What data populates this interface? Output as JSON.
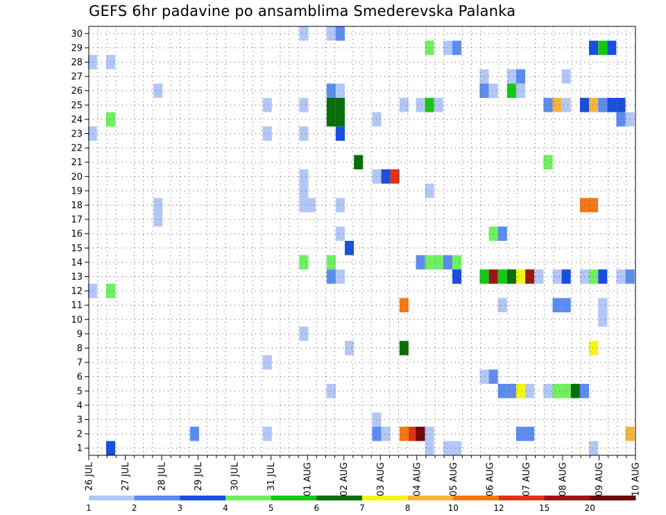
{
  "chart_data": {
    "type": "heatmap",
    "title": "GEFS 6hr padavine po ansamblima Smederevska Palanka",
    "x_tick_labels": [
      "26 JUL",
      "27 JUL",
      "28 JUL",
      "29 JUL",
      "30 JUL",
      "31 JUL",
      "01 AUG",
      "02 AUG",
      "03 AUG",
      "04 AUG",
      "05 AUG",
      "06 AUG",
      "07 AUG",
      "08 AUG",
      "09 AUG",
      "10 AUG"
    ],
    "y_tick_labels": [
      "1",
      "2",
      "3",
      "4",
      "5",
      "6",
      "7",
      "8",
      "9",
      "10",
      "11",
      "12",
      "13",
      "14",
      "15",
      "16",
      "17",
      "18",
      "19",
      "20",
      "21",
      "22",
      "23",
      "24",
      "25",
      "26",
      "27",
      "28",
      "29",
      "30"
    ],
    "xlim": [
      0,
      15
    ],
    "ylim": [
      0.5,
      30.5
    ],
    "grid": true,
    "legend_position": "bottom",
    "color_scale": {
      "colors": [
        "#b3c7f7",
        "#5d8cf0",
        "#1a4fdc",
        "#6ef060",
        "#14c814",
        "#0a6e0a",
        "#f5f514",
        "#f5b43c",
        "#f57814",
        "#e03214",
        "#a01414",
        "#6e0a0a"
      ],
      "labels": [
        "1",
        "2",
        "3",
        "4",
        "5",
        "6",
        "7",
        "8",
        "10",
        "12",
        "15",
        "20"
      ]
    },
    "cells": [
      {
        "d": 0.1,
        "m": 28,
        "v": 1
      },
      {
        "d": 0.1,
        "m": 23,
        "v": 1
      },
      {
        "d": 0.1,
        "m": 12,
        "v": 1
      },
      {
        "d": 0.6,
        "m": 28,
        "v": 1
      },
      {
        "d": 0.6,
        "m": 24,
        "v": 4
      },
      {
        "d": 0.6,
        "m": 12,
        "v": 4
      },
      {
        "d": 0.6,
        "m": 1,
        "v": 3
      },
      {
        "d": 1.9,
        "m": 26,
        "v": 1
      },
      {
        "d": 1.9,
        "m": 18,
        "v": 1
      },
      {
        "d": 1.9,
        "m": 17,
        "v": 1
      },
      {
        "d": 2.9,
        "m": 2,
        "v": 2
      },
      {
        "d": 4.9,
        "m": 25,
        "v": 1
      },
      {
        "d": 4.9,
        "m": 23,
        "v": 1
      },
      {
        "d": 4.9,
        "m": 7,
        "v": 1
      },
      {
        "d": 4.9,
        "m": 2,
        "v": 1
      },
      {
        "d": 5.9,
        "m": 30,
        "v": 1
      },
      {
        "d": 5.9,
        "m": 25,
        "v": 1
      },
      {
        "d": 5.9,
        "m": 23,
        "v": 1
      },
      {
        "d": 5.9,
        "m": 20,
        "v": 1
      },
      {
        "d": 5.9,
        "m": 19,
        "v": 1
      },
      {
        "d": 5.9,
        "m": 18,
        "v": 1
      },
      {
        "d": 5.9,
        "m": 14,
        "v": 4
      },
      {
        "d": 5.9,
        "m": 9,
        "v": 1
      },
      {
        "d": 6.1,
        "m": 18,
        "v": 1
      },
      {
        "d": 6.65,
        "m": 30,
        "v": 1
      },
      {
        "d": 6.65,
        "m": 26,
        "v": 2
      },
      {
        "d": 6.65,
        "m": 25,
        "v": 6
      },
      {
        "d": 6.65,
        "m": 24,
        "v": 6
      },
      {
        "d": 6.65,
        "m": 14,
        "v": 4
      },
      {
        "d": 6.65,
        "m": 13,
        "v": 2
      },
      {
        "d": 6.65,
        "m": 5,
        "v": 1
      },
      {
        "d": 6.9,
        "m": 30,
        "v": 2
      },
      {
        "d": 6.9,
        "m": 26,
        "v": 1
      },
      {
        "d": 6.9,
        "m": 25,
        "v": 6
      },
      {
        "d": 6.9,
        "m": 24,
        "v": 6
      },
      {
        "d": 6.9,
        "m": 23,
        "v": 3
      },
      {
        "d": 6.9,
        "m": 18,
        "v": 1
      },
      {
        "d": 6.9,
        "m": 16,
        "v": 1
      },
      {
        "d": 6.9,
        "m": 13,
        "v": 1
      },
      {
        "d": 7.15,
        "m": 15,
        "v": 3
      },
      {
        "d": 7.15,
        "m": 8,
        "v": 1
      },
      {
        "d": 7.4,
        "m": 21,
        "v": 6
      },
      {
        "d": 7.9,
        "m": 24,
        "v": 1
      },
      {
        "d": 7.9,
        "m": 20,
        "v": 1
      },
      {
        "d": 7.9,
        "m": 3,
        "v": 1
      },
      {
        "d": 7.9,
        "m": 2,
        "v": 2
      },
      {
        "d": 8.15,
        "m": 20,
        "v": 3
      },
      {
        "d": 8.15,
        "m": 2,
        "v": 1
      },
      {
        "d": 8.4,
        "m": 20,
        "v": 12
      },
      {
        "d": 8.65,
        "m": 25,
        "v": 1
      },
      {
        "d": 8.65,
        "m": 11,
        "v": 10
      },
      {
        "d": 8.65,
        "m": 8,
        "v": 6
      },
      {
        "d": 8.65,
        "m": 2,
        "v": 10
      },
      {
        "d": 8.9,
        "m": 2,
        "v": 12
      },
      {
        "d": 9.1,
        "m": 25,
        "v": 1
      },
      {
        "d": 9.1,
        "m": 14,
        "v": 2
      },
      {
        "d": 9.1,
        "m": 2,
        "v": 20
      },
      {
        "d": 9.35,
        "m": 29,
        "v": 4
      },
      {
        "d": 9.35,
        "m": 25,
        "v": 5
      },
      {
        "d": 9.35,
        "m": 19,
        "v": 1
      },
      {
        "d": 9.35,
        "m": 14,
        "v": 4
      },
      {
        "d": 9.35,
        "m": 2,
        "v": 1
      },
      {
        "d": 9.35,
        "m": 1,
        "v": 1
      },
      {
        "d": 9.6,
        "m": 25,
        "v": 1
      },
      {
        "d": 9.6,
        "m": 14,
        "v": 4
      },
      {
        "d": 9.85,
        "m": 29,
        "v": 1
      },
      {
        "d": 9.85,
        "m": 14,
        "v": 2
      },
      {
        "d": 9.85,
        "m": 1,
        "v": 1
      },
      {
        "d": 10.1,
        "m": 29,
        "v": 2
      },
      {
        "d": 10.1,
        "m": 14,
        "v": 4
      },
      {
        "d": 10.1,
        "m": 13,
        "v": 3
      },
      {
        "d": 10.1,
        "m": 1,
        "v": 1
      },
      {
        "d": 10.85,
        "m": 27,
        "v": 1
      },
      {
        "d": 10.85,
        "m": 26,
        "v": 2
      },
      {
        "d": 10.85,
        "m": 13,
        "v": 5
      },
      {
        "d": 10.85,
        "m": 6,
        "v": 1
      },
      {
        "d": 11.1,
        "m": 26,
        "v": 1
      },
      {
        "d": 11.1,
        "m": 16,
        "v": 4
      },
      {
        "d": 11.1,
        "m": 13,
        "v": 15
      },
      {
        "d": 11.1,
        "m": 6,
        "v": 2
      },
      {
        "d": 11.35,
        "m": 16,
        "v": 2
      },
      {
        "d": 11.35,
        "m": 13,
        "v": 5
      },
      {
        "d": 11.35,
        "m": 11,
        "v": 1
      },
      {
        "d": 11.35,
        "m": 5,
        "v": 2
      },
      {
        "d": 11.6,
        "m": 27,
        "v": 1
      },
      {
        "d": 11.6,
        "m": 26,
        "v": 5
      },
      {
        "d": 11.6,
        "m": 13,
        "v": 6
      },
      {
        "d": 11.6,
        "m": 5,
        "v": 2
      },
      {
        "d": 11.85,
        "m": 27,
        "v": 2
      },
      {
        "d": 11.85,
        "m": 26,
        "v": 1
      },
      {
        "d": 11.85,
        "m": 13,
        "v": 7
      },
      {
        "d": 11.85,
        "m": 5,
        "v": 7
      },
      {
        "d": 11.85,
        "m": 2,
        "v": 2
      },
      {
        "d": 12.1,
        "m": 13,
        "v": 15
      },
      {
        "d": 12.1,
        "m": 5,
        "v": 1
      },
      {
        "d": 12.1,
        "m": 2,
        "v": 2
      },
      {
        "d": 12.35,
        "m": 13,
        "v": 1
      },
      {
        "d": 12.6,
        "m": 25,
        "v": 2
      },
      {
        "d": 12.6,
        "m": 21,
        "v": 4
      },
      {
        "d": 12.6,
        "m": 5,
        "v": 1
      },
      {
        "d": 12.85,
        "m": 25,
        "v": 8
      },
      {
        "d": 12.85,
        "m": 13,
        "v": 1
      },
      {
        "d": 12.85,
        "m": 11,
        "v": 2
      },
      {
        "d": 12.85,
        "m": 5,
        "v": 4
      },
      {
        "d": 13.1,
        "m": 27,
        "v": 1
      },
      {
        "d": 13.1,
        "m": 25,
        "v": 1
      },
      {
        "d": 13.1,
        "m": 13,
        "v": 3
      },
      {
        "d": 13.1,
        "m": 11,
        "v": 2
      },
      {
        "d": 13.1,
        "m": 5,
        "v": 4
      },
      {
        "d": 13.35,
        "m": 5,
        "v": 6
      },
      {
        "d": 13.6,
        "m": 25,
        "v": 3
      },
      {
        "d": 13.6,
        "m": 18,
        "v": 10
      },
      {
        "d": 13.6,
        "m": 13,
        "v": 1
      },
      {
        "d": 13.6,
        "m": 5,
        "v": 2
      },
      {
        "d": 13.85,
        "m": 29,
        "v": 3
      },
      {
        "d": 13.85,
        "m": 25,
        "v": 8
      },
      {
        "d": 13.85,
        "m": 18,
        "v": 10
      },
      {
        "d": 13.85,
        "m": 13,
        "v": 4
      },
      {
        "d": 13.85,
        "m": 8,
        "v": 7
      },
      {
        "d": 13.85,
        "m": 1,
        "v": 1
      },
      {
        "d": 14.1,
        "m": 29,
        "v": 5
      },
      {
        "d": 14.1,
        "m": 25,
        "v": 2
      },
      {
        "d": 14.1,
        "m": 13,
        "v": 3
      },
      {
        "d": 14.1,
        "m": 11,
        "v": 1
      },
      {
        "d": 14.1,
        "m": 10,
        "v": 1
      },
      {
        "d": 14.35,
        "m": 29,
        "v": 3
      },
      {
        "d": 14.35,
        "m": 25,
        "v": 3
      },
      {
        "d": 14.6,
        "m": 25,
        "v": 3
      },
      {
        "d": 14.6,
        "m": 24,
        "v": 2
      },
      {
        "d": 14.6,
        "m": 13,
        "v": 1
      },
      {
        "d": 14.85,
        "m": 24,
        "v": 1
      },
      {
        "d": 14.85,
        "m": 13,
        "v": 2
      },
      {
        "d": 14.85,
        "m": 2,
        "v": 8
      }
    ]
  }
}
